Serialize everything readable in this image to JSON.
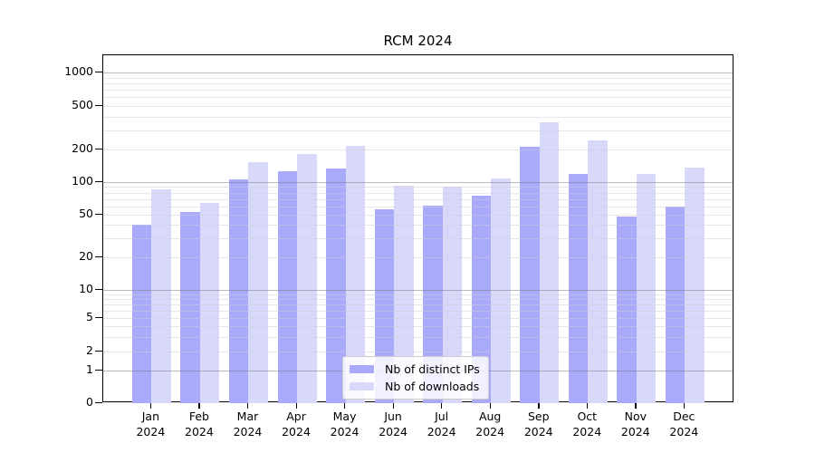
{
  "chart_data": {
    "type": "bar",
    "title": "RCM 2024",
    "categories": [
      "Jan",
      "Feb",
      "Mar",
      "Apr",
      "May",
      "Jun",
      "Jul",
      "Aug",
      "Sep",
      "Oct",
      "Nov",
      "Dec"
    ],
    "category_year": "2024",
    "series": [
      {
        "name": "Nb of distinct IPs",
        "color": "#aaaafa",
        "values": [
          40,
          53,
          105,
          127,
          134,
          56,
          61,
          75,
          213,
          118,
          48,
          60
        ]
      },
      {
        "name": "Nb of downloads",
        "color": "#d8d8fa",
        "values": [
          85,
          64,
          152,
          180,
          215,
          93,
          90,
          108,
          356,
          240,
          119,
          136
        ]
      }
    ],
    "yscale": "symlog",
    "yticks": [
      {
        "label": "0",
        "value": 0
      },
      {
        "label": "1",
        "value": 1
      },
      {
        "label": "2",
        "value": 2
      },
      {
        "label": "5",
        "value": 5
      },
      {
        "label": "10",
        "value": 10
      },
      {
        "label": "20",
        "value": 20
      },
      {
        "label": "50",
        "value": 50
      },
      {
        "label": "100",
        "value": 100
      },
      {
        "label": "200",
        "value": 200
      },
      {
        "label": "500",
        "value": 500
      },
      {
        "label": "1000",
        "value": 1000
      }
    ],
    "ylim": [
      0,
      1400
    ],
    "xlabel": "",
    "ylabel": "",
    "grid": "on",
    "legend_position": "lower-center",
    "colors": {
      "axis": "#000000",
      "grid_major": "#bcbcbf",
      "grid_minor": "#e9e9ef",
      "legend_border": "#cccccc"
    }
  }
}
